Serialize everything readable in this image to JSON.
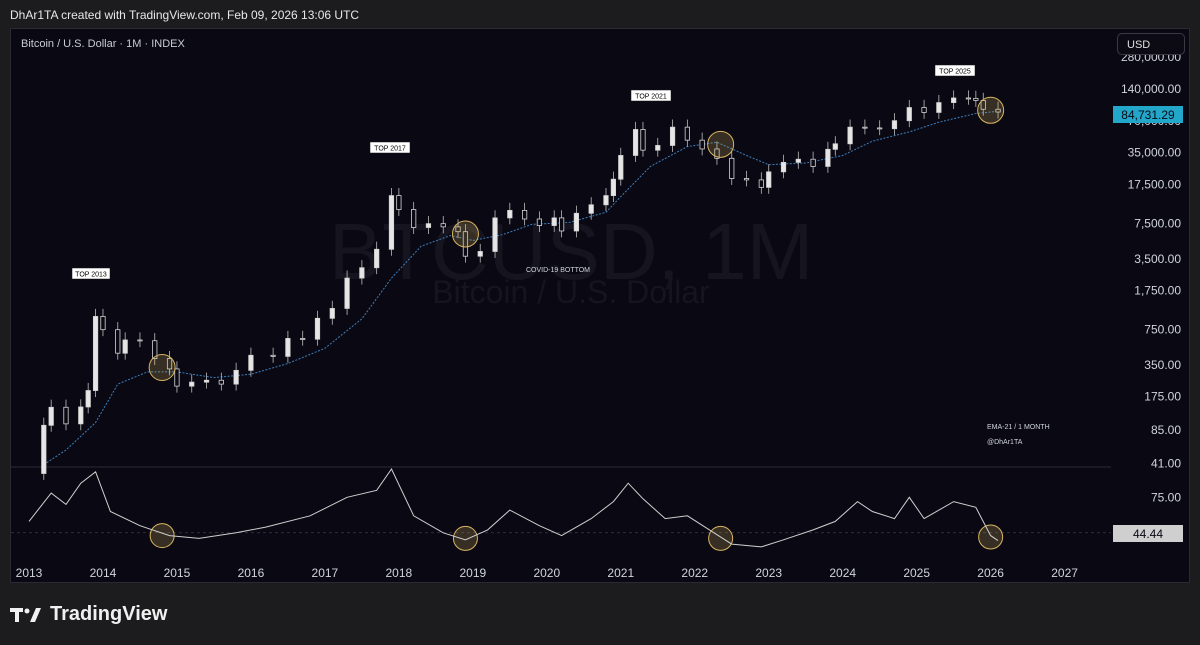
{
  "header": {
    "credit": "DhAr1TA created with TradingView.com, Feb 09, 2026 13:06 UTC"
  },
  "toolbar": {
    "symbol": "Bitcoin / U.S. Dollar · 1M · INDEX",
    "currency_button": "USD"
  },
  "footer": {
    "brand": "TradingView"
  },
  "colors": {
    "background": "#0a0913",
    "candle": "#d4d4d4",
    "ema": "#3b7fbf",
    "circle": "#d9b561",
    "rsi_line": "#cfcfcf",
    "price_badge": "#22a6c9"
  },
  "chart_data": [
    {
      "type": "candlestick",
      "title": "",
      "watermark": [
        "BTCUSD, 1M",
        "Bitcoin / U.S. Dollar"
      ],
      "y_scale": "log",
      "y_tick_labels": [
        "280,000.00",
        "140,000.00",
        "70,000.00",
        "35,000.00",
        "17,500.00",
        "7,500.00",
        "3,500.00",
        "1,750.00",
        "750.00",
        "350.00",
        "175.00",
        "85.00",
        "41.00"
      ],
      "y_ticks": [
        280000,
        140000,
        70000,
        35000,
        17500,
        7500,
        3500,
        1750,
        750,
        350,
        175,
        85,
        41
      ],
      "x_tick_labels": [
        "2013",
        "2014",
        "2015",
        "2016",
        "2017",
        "2018",
        "2019",
        "2020",
        "2021",
        "2022",
        "2023",
        "2024",
        "2025",
        "2026",
        "2027"
      ],
      "xlim": [
        2013,
        2027.6
      ],
      "ylim": [
        38,
        280000
      ],
      "last_price": "84,731.29",
      "series": [
        {
          "name": "EMA-21 / 1 MONTH",
          "type": "line",
          "points": [
            [
              2013.2,
              40
            ],
            [
              2013.5,
              55
            ],
            [
              2013.9,
              100
            ],
            [
              2014.2,
              230
            ],
            [
              2014.6,
              300
            ],
            [
              2015.0,
              300
            ],
            [
              2015.5,
              265
            ],
            [
              2016.0,
              285
            ],
            [
              2016.5,
              360
            ],
            [
              2017.0,
              500
            ],
            [
              2017.5,
              950
            ],
            [
              2017.9,
              2300
            ],
            [
              2018.3,
              4600
            ],
            [
              2018.7,
              5800
            ],
            [
              2019.0,
              5200
            ],
            [
              2019.4,
              5900
            ],
            [
              2019.8,
              7400
            ],
            [
              2020.3,
              7700
            ],
            [
              2020.8,
              9600
            ],
            [
              2021.0,
              13500
            ],
            [
              2021.4,
              26000
            ],
            [
              2021.9,
              40000
            ],
            [
              2022.3,
              44000
            ],
            [
              2022.7,
              33000
            ],
            [
              2023.0,
              27000
            ],
            [
              2023.5,
              28000
            ],
            [
              2024.0,
              33000
            ],
            [
              2024.4,
              45000
            ],
            [
              2024.9,
              55000
            ],
            [
              2025.3,
              68000
            ],
            [
              2025.8,
              82000
            ],
            [
              2026.1,
              86000
            ]
          ]
        },
        {
          "name": "BTCUSD monthly closes",
          "type": "candles",
          "points": [
            [
              2013.1,
              33
            ],
            [
              2013.2,
              94
            ],
            [
              2013.3,
              139
            ],
            [
              2013.5,
              97
            ],
            [
              2013.7,
              140
            ],
            [
              2013.8,
              200
            ],
            [
              2013.9,
              1000
            ],
            [
              2014.0,
              750
            ],
            [
              2014.2,
              450
            ],
            [
              2014.3,
              600
            ],
            [
              2014.5,
              590
            ],
            [
              2014.7,
              400
            ],
            [
              2014.9,
              320
            ],
            [
              2015.0,
              220
            ],
            [
              2015.2,
              240
            ],
            [
              2015.4,
              250
            ],
            [
              2015.6,
              230
            ],
            [
              2015.8,
              310
            ],
            [
              2016.0,
              430
            ],
            [
              2016.3,
              420
            ],
            [
              2016.5,
              620
            ],
            [
              2016.7,
              610
            ],
            [
              2016.9,
              960
            ],
            [
              2017.1,
              1190
            ],
            [
              2017.3,
              2300
            ],
            [
              2017.5,
              2880
            ],
            [
              2017.7,
              4300
            ],
            [
              2017.9,
              13800
            ],
            [
              2018.0,
              10200
            ],
            [
              2018.2,
              6900
            ],
            [
              2018.4,
              7500
            ],
            [
              2018.6,
              7000
            ],
            [
              2018.8,
              6300
            ],
            [
              2018.9,
              3700
            ],
            [
              2019.1,
              4100
            ],
            [
              2019.3,
              8500
            ],
            [
              2019.5,
              10000
            ],
            [
              2019.7,
              8300
            ],
            [
              2019.9,
              7200
            ],
            [
              2020.1,
              8500
            ],
            [
              2020.2,
              6400
            ],
            [
              2020.4,
              9400
            ],
            [
              2020.6,
              11300
            ],
            [
              2020.8,
              13800
            ],
            [
              2020.9,
              19700
            ],
            [
              2021.0,
              33000
            ],
            [
              2021.2,
              58000
            ],
            [
              2021.3,
              37000
            ],
            [
              2021.5,
              41000
            ],
            [
              2021.7,
              61000
            ],
            [
              2021.9,
              46000
            ],
            [
              2022.1,
              38000
            ],
            [
              2022.3,
              31000
            ],
            [
              2022.5,
              20000
            ],
            [
              2022.7,
              19400
            ],
            [
              2022.9,
              16500
            ],
            [
              2023.0,
              23100
            ],
            [
              2023.2,
              28400
            ],
            [
              2023.4,
              30400
            ],
            [
              2023.6,
              26000
            ],
            [
              2023.8,
              37700
            ],
            [
              2023.9,
              42500
            ],
            [
              2024.1,
              61000
            ],
            [
              2024.3,
              60000
            ],
            [
              2024.5,
              59000
            ],
            [
              2024.7,
              70200
            ],
            [
              2024.9,
              93400
            ],
            [
              2025.1,
              84000
            ],
            [
              2025.3,
              104000
            ],
            [
              2025.5,
              115000
            ],
            [
              2025.7,
              114000
            ],
            [
              2025.8,
              109000
            ],
            [
              2025.9,
              90000
            ],
            [
              2026.1,
              84731
            ]
          ]
        }
      ],
      "annotations": [
        "TOP 2013",
        "TOP 2017",
        "TOP 2021",
        "TOP 2025",
        "COVID-19 BOTTOM",
        "EMA-21 / 1 MONTH",
        "@DhAr1TA"
      ]
    },
    {
      "type": "line",
      "title": "",
      "y_tick_labels": [
        "75.00",
        "50.00"
      ],
      "ylim": [
        35,
        95
      ],
      "last_value": "44.44",
      "series": [
        {
          "name": "",
          "points": [
            [
              2013.0,
              58
            ],
            [
              2013.3,
              78
            ],
            [
              2013.5,
              70
            ],
            [
              2013.7,
              85
            ],
            [
              2013.9,
              93
            ],
            [
              2014.1,
              65
            ],
            [
              2014.5,
              55
            ],
            [
              2014.9,
              48
            ],
            [
              2015.3,
              46
            ],
            [
              2015.8,
              50
            ],
            [
              2016.2,
              54
            ],
            [
              2016.8,
              62
            ],
            [
              2017.3,
              75
            ],
            [
              2017.7,
              80
            ],
            [
              2017.9,
              95
            ],
            [
              2018.2,
              62
            ],
            [
              2018.6,
              50
            ],
            [
              2018.9,
              45
            ],
            [
              2019.2,
              52
            ],
            [
              2019.5,
              66
            ],
            [
              2019.9,
              55
            ],
            [
              2020.2,
              48
            ],
            [
              2020.6,
              60
            ],
            [
              2020.9,
              72
            ],
            [
              2021.1,
              85
            ],
            [
              2021.3,
              74
            ],
            [
              2021.6,
              60
            ],
            [
              2021.9,
              62
            ],
            [
              2022.2,
              52
            ],
            [
              2022.5,
              42
            ],
            [
              2022.9,
              40
            ],
            [
              2023.2,
              45
            ],
            [
              2023.6,
              52
            ],
            [
              2023.9,
              58
            ],
            [
              2024.2,
              72
            ],
            [
              2024.4,
              65
            ],
            [
              2024.7,
              60
            ],
            [
              2024.9,
              75
            ],
            [
              2025.1,
              60
            ],
            [
              2025.5,
              72
            ],
            [
              2025.8,
              68
            ],
            [
              2026.0,
              48
            ],
            [
              2026.1,
              44.44
            ]
          ]
        }
      ]
    }
  ]
}
